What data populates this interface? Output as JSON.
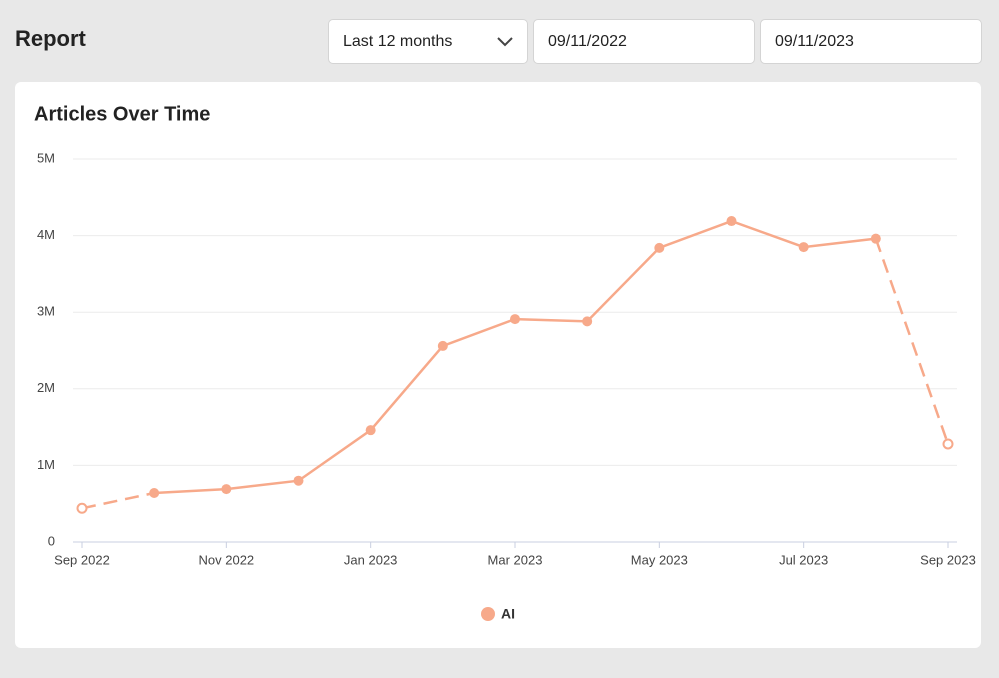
{
  "header": {
    "title": "Report",
    "range": "Last 12 months",
    "start_date": "09/11/2022",
    "end_date": "09/11/2023"
  },
  "chart_data": {
    "type": "line",
    "title": "Articles Over Time",
    "categories": [
      "Sep 2022",
      null,
      "Nov 2022",
      null,
      "Jan 2023",
      null,
      "Mar 2023",
      null,
      "May 2023",
      null,
      "Jul 2023",
      null,
      "Sep 2023"
    ],
    "series": [
      {
        "name": "AI",
        "color": "#f7a98a",
        "values": [
          440000,
          640000,
          690000,
          800000,
          1460000,
          2560000,
          2910000,
          2880000,
          3840000,
          4190000,
          3850000,
          3960000,
          1280000
        ]
      }
    ],
    "ylim": [
      0,
      5000000
    ],
    "yticks": [
      0,
      {
        "value": 1000000,
        "label": "1M"
      },
      {
        "value": 2000000,
        "label": "2M"
      },
      {
        "value": 3000000,
        "label": "3M"
      },
      {
        "value": 4000000,
        "label": "4M"
      },
      {
        "value": 5000000,
        "label": "5M"
      }
    ],
    "grid": true,
    "legend": "bottom"
  }
}
